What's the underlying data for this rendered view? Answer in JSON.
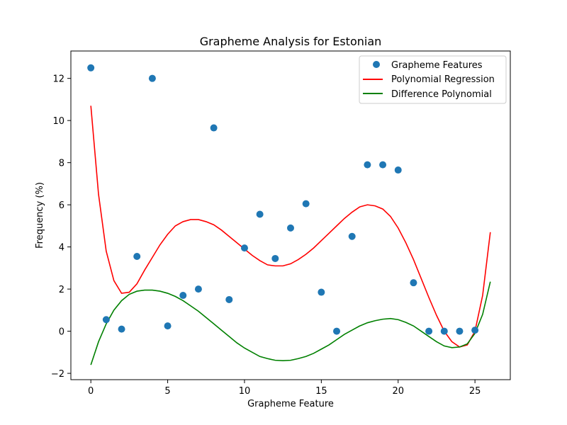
{
  "chart_data": {
    "type": "scatter+line",
    "title": "Grapheme Analysis for Estonian",
    "xlabel": "Grapheme Feature",
    "ylabel": "Frequency (%)",
    "xlim": [
      -1.3,
      27.3
    ],
    "ylim": [
      -2.3,
      13.3
    ],
    "xticks": [
      0,
      5,
      10,
      15,
      20,
      25
    ],
    "yticks": [
      -2,
      0,
      2,
      4,
      6,
      8,
      10,
      12
    ],
    "xtick_labels": [
      "0",
      "5",
      "10",
      "15",
      "20",
      "25"
    ],
    "ytick_labels": [
      "−2",
      "0",
      "2",
      "4",
      "6",
      "8",
      "10",
      "12"
    ],
    "legend_position": "top-right",
    "series": [
      {
        "name": "Grapheme Features",
        "kind": "scatter",
        "color": "#1f77b4",
        "x": [
          0,
          1,
          2,
          3,
          4,
          5,
          6,
          7,
          8,
          9,
          10,
          11,
          12,
          13,
          14,
          15,
          16,
          17,
          18,
          19,
          20,
          21,
          22,
          23,
          24,
          25
        ],
        "y": [
          12.5,
          0.55,
          0.1,
          3.55,
          12.0,
          0.25,
          1.7,
          2.0,
          9.65,
          1.5,
          3.95,
          5.55,
          3.45,
          4.9,
          6.05,
          1.85,
          0.0,
          4.5,
          7.9,
          7.9,
          7.65,
          2.3,
          0.0,
          0.0,
          0.0,
          0.05
        ]
      },
      {
        "name": "Polynomial Regression",
        "kind": "line",
        "color": "#ff0000",
        "x": [
          0,
          0.5,
          1,
          1.5,
          2,
          2.5,
          3,
          3.5,
          4,
          4.5,
          5,
          5.5,
          6,
          6.5,
          7,
          7.5,
          8,
          8.5,
          9,
          9.5,
          10,
          10.5,
          11,
          11.5,
          12,
          12.5,
          13,
          13.5,
          14,
          14.5,
          15,
          15.5,
          16,
          16.5,
          17,
          17.5,
          18,
          18.5,
          19,
          19.5,
          20,
          20.5,
          21,
          21.5,
          22,
          22.5,
          23,
          23.5,
          24,
          24.5,
          25,
          25.5,
          26
        ],
        "y": [
          10.7,
          6.5,
          3.8,
          2.4,
          1.8,
          1.85,
          2.25,
          2.9,
          3.5,
          4.1,
          4.6,
          5.0,
          5.2,
          5.3,
          5.3,
          5.2,
          5.05,
          4.8,
          4.5,
          4.2,
          3.9,
          3.6,
          3.35,
          3.15,
          3.1,
          3.1,
          3.2,
          3.4,
          3.65,
          3.95,
          4.3,
          4.65,
          5.0,
          5.35,
          5.65,
          5.9,
          6.0,
          5.95,
          5.8,
          5.45,
          4.9,
          4.2,
          3.4,
          2.5,
          1.6,
          0.75,
          0.0,
          -0.5,
          -0.75,
          -0.65,
          0.0,
          1.7,
          4.7
        ]
      },
      {
        "name": "Difference Polynomial",
        "kind": "line",
        "color": "#008000",
        "x": [
          0,
          0.5,
          1,
          1.5,
          2,
          2.5,
          3,
          3.5,
          4,
          4.5,
          5,
          5.5,
          6,
          6.5,
          7,
          7.5,
          8,
          8.5,
          9,
          9.5,
          10,
          10.5,
          11,
          11.5,
          12,
          12.5,
          13,
          13.5,
          14,
          14.5,
          15,
          15.5,
          16,
          16.5,
          17,
          17.5,
          18,
          18.5,
          19,
          19.5,
          20,
          20.5,
          21,
          21.5,
          22,
          22.5,
          23,
          23.5,
          24,
          24.5,
          25,
          25.5,
          26
        ],
        "y": [
          -1.6,
          -0.5,
          0.35,
          1.0,
          1.45,
          1.75,
          1.9,
          1.95,
          1.95,
          1.9,
          1.8,
          1.65,
          1.45,
          1.2,
          0.95,
          0.65,
          0.35,
          0.05,
          -0.25,
          -0.55,
          -0.8,
          -1.0,
          -1.2,
          -1.3,
          -1.38,
          -1.4,
          -1.38,
          -1.3,
          -1.2,
          -1.05,
          -0.85,
          -0.65,
          -0.4,
          -0.15,
          0.05,
          0.25,
          0.4,
          0.5,
          0.57,
          0.6,
          0.55,
          0.42,
          0.25,
          0.0,
          -0.25,
          -0.5,
          -0.7,
          -0.78,
          -0.75,
          -0.6,
          -0.1,
          0.8,
          2.35
        ]
      }
    ]
  }
}
